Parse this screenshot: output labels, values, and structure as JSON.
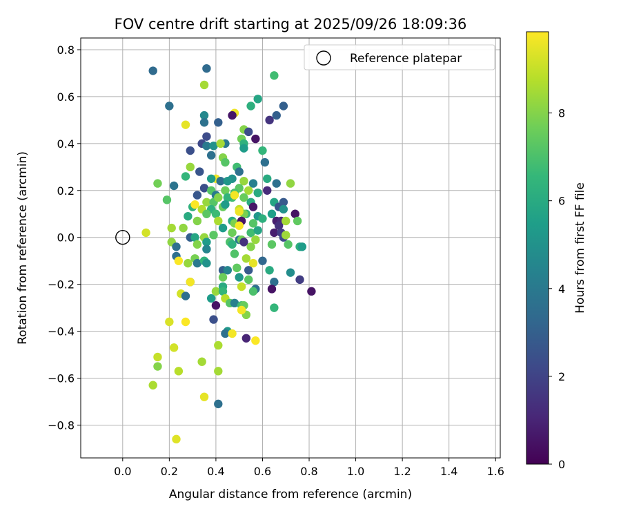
{
  "chart_data": {
    "type": "scatter",
    "title": "FOV centre drift starting at 2025/09/26 18:09:36",
    "xlabel": "Angular distance from reference (arcmin)",
    "ylabel": "Rotation from reference (arcmin)",
    "xlim": [
      -0.18,
      1.62
    ],
    "ylim": [
      -0.94,
      0.85
    ],
    "xticks": [
      0.0,
      0.2,
      0.4,
      0.6,
      0.8,
      1.0,
      1.2,
      1.4,
      1.6
    ],
    "xtick_labels": [
      "0.0",
      "0.2",
      "0.4",
      "0.6",
      "0.8",
      "1.0",
      "1.2",
      "1.4",
      "1.6"
    ],
    "yticks": [
      -0.8,
      -0.6,
      -0.4,
      -0.2,
      0.0,
      0.2,
      0.4,
      0.6,
      0.8
    ],
    "ytick_labels": [
      "−0.8",
      "−0.6",
      "−0.4",
      "−0.2",
      "0.0",
      "0.2",
      "0.4",
      "0.6",
      "0.8"
    ],
    "grid": true,
    "legend": {
      "label": "Reference platepar",
      "position": "top-right"
    },
    "reference_point": {
      "x": 0.0,
      "y": 0.0
    },
    "colorbar": {
      "label": "Hours from first FF file",
      "range": [
        0,
        9.85
      ],
      "ticks": [
        0,
        2,
        4,
        6,
        8
      ],
      "tick_labels": [
        "0",
        "2",
        "4",
        "6",
        "8"
      ],
      "colormap": [
        "#440154",
        "#482878",
        "#3e4989",
        "#31688e",
        "#26828e",
        "#1f9e89",
        "#35b779",
        "#6ece58",
        "#b5de2b",
        "#fde725"
      ]
    },
    "points": [
      [
        0.13,
        0.71,
        3.4
      ],
      [
        0.36,
        0.72,
        3.4
      ],
      [
        0.65,
        0.69,
        6.8
      ],
      [
        0.35,
        0.65,
        8.5
      ],
      [
        0.58,
        0.59,
        5.8
      ],
      [
        0.2,
        0.56,
        3.6
      ],
      [
        0.69,
        0.56,
        3.0
      ],
      [
        0.55,
        0.56,
        6.2
      ],
      [
        0.66,
        0.52,
        3.0
      ],
      [
        0.35,
        0.52,
        4.6
      ],
      [
        0.48,
        0.53,
        9.6
      ],
      [
        0.47,
        0.52,
        0.6
      ],
      [
        0.27,
        0.48,
        9.5
      ],
      [
        0.41,
        0.49,
        3.0
      ],
      [
        0.35,
        0.49,
        3.7
      ],
      [
        0.63,
        0.5,
        1.5
      ],
      [
        0.52,
        0.46,
        8.0
      ],
      [
        0.54,
        0.45,
        2.3
      ],
      [
        0.36,
        0.43,
        2.3
      ],
      [
        0.51,
        0.42,
        7.7
      ],
      [
        0.57,
        0.42,
        0.5
      ],
      [
        0.34,
        0.4,
        2.2
      ],
      [
        0.36,
        0.39,
        4.0
      ],
      [
        0.29,
        0.37,
        2.4
      ],
      [
        0.44,
        0.4,
        4.0
      ],
      [
        0.39,
        0.39,
        5.0
      ],
      [
        0.42,
        0.4,
        8.5
      ],
      [
        0.52,
        0.4,
        6.3
      ],
      [
        0.52,
        0.38,
        5.4
      ],
      [
        0.6,
        0.37,
        6.5
      ],
      [
        0.38,
        0.35,
        3.6
      ],
      [
        0.43,
        0.34,
        8.0
      ],
      [
        0.44,
        0.32,
        7.2
      ],
      [
        0.61,
        0.32,
        3.6
      ],
      [
        0.33,
        0.28,
        2.6
      ],
      [
        0.29,
        0.3,
        8.3
      ],
      [
        0.49,
        0.3,
        6.8
      ],
      [
        0.5,
        0.28,
        3.6
      ],
      [
        0.47,
        0.25,
        5.0
      ],
      [
        0.4,
        0.25,
        9.6
      ],
      [
        0.38,
        0.25,
        5.4
      ],
      [
        0.42,
        0.24,
        3.6
      ],
      [
        0.45,
        0.24,
        5.2
      ],
      [
        0.52,
        0.24,
        8.3
      ],
      [
        0.56,
        0.23,
        4.3
      ],
      [
        0.62,
        0.25,
        6.0
      ],
      [
        0.66,
        0.23,
        3.6
      ],
      [
        0.72,
        0.23,
        8.2
      ],
      [
        0.27,
        0.26,
        6.5
      ],
      [
        0.15,
        0.23,
        7.7
      ],
      [
        0.22,
        0.22,
        3.8
      ],
      [
        0.35,
        0.21,
        2.4
      ],
      [
        0.38,
        0.2,
        7.2
      ],
      [
        0.44,
        0.2,
        7.6
      ],
      [
        0.5,
        0.21,
        7.3
      ],
      [
        0.54,
        0.2,
        8.5
      ],
      [
        0.62,
        0.2,
        1.2
      ],
      [
        0.58,
        0.19,
        6.0
      ],
      [
        0.32,
        0.18,
        2.7
      ],
      [
        0.4,
        0.18,
        4.0
      ],
      [
        0.48,
        0.19,
        7.0
      ],
      [
        0.47,
        0.17,
        6.8
      ],
      [
        0.36,
        0.15,
        8.3
      ],
      [
        0.39,
        0.15,
        7.2
      ],
      [
        0.41,
        0.17,
        8.0
      ],
      [
        0.45,
        0.17,
        6.4
      ],
      [
        0.48,
        0.18,
        9.7
      ],
      [
        0.52,
        0.17,
        7.5
      ],
      [
        0.55,
        0.15,
        6.0
      ],
      [
        0.56,
        0.13,
        0.6
      ],
      [
        0.65,
        0.15,
        5.8
      ],
      [
        0.67,
        0.13,
        2.6
      ],
      [
        0.69,
        0.15,
        2.8
      ],
      [
        0.3,
        0.13,
        6.3
      ],
      [
        0.31,
        0.14,
        9.8
      ],
      [
        0.34,
        0.12,
        8.7
      ],
      [
        0.38,
        0.12,
        6.3
      ],
      [
        0.43,
        0.13,
        7.5
      ],
      [
        0.44,
        0.14,
        5.4
      ],
      [
        0.5,
        0.12,
        9.0
      ],
      [
        0.53,
        0.1,
        6.5
      ],
      [
        0.52,
        0.1,
        7.8
      ],
      [
        0.58,
        0.09,
        5.2
      ],
      [
        0.6,
        0.08,
        6.2
      ],
      [
        0.64,
        0.1,
        5.5
      ],
      [
        0.69,
        0.12,
        5.0
      ],
      [
        0.19,
        0.16,
        7.2
      ],
      [
        0.36,
        0.1,
        7.3
      ],
      [
        0.4,
        0.1,
        6.7
      ],
      [
        0.28,
        0.09,
        6.0
      ],
      [
        0.32,
        0.07,
        8.0
      ],
      [
        0.41,
        0.07,
        8.6
      ],
      [
        0.47,
        0.07,
        6.1
      ],
      [
        0.48,
        0.06,
        7.9
      ],
      [
        0.5,
        0.11,
        9.6
      ],
      [
        0.51,
        0.07,
        0.6
      ],
      [
        0.56,
        0.06,
        7.2
      ],
      [
        0.66,
        0.07,
        0.8
      ],
      [
        0.68,
        0.07,
        1.1
      ],
      [
        0.67,
        0.05,
        1.4
      ],
      [
        0.7,
        0.07,
        8.5
      ],
      [
        0.74,
        0.1,
        0.5
      ],
      [
        0.75,
        0.07,
        7.4
      ],
      [
        0.43,
        0.04,
        5.4
      ],
      [
        0.5,
        0.05,
        9.8
      ],
      [
        0.55,
        0.02,
        6.8
      ],
      [
        0.58,
        0.03,
        5.8
      ],
      [
        0.65,
        0.02,
        0.8
      ],
      [
        0.68,
        0.02,
        1.8
      ],
      [
        0.69,
        0.0,
        2.2
      ],
      [
        0.7,
        0.01,
        8.4
      ],
      [
        0.1,
        0.02,
        9.2
      ],
      [
        0.21,
        0.04,
        8.5
      ],
      [
        0.26,
        0.04,
        8.2
      ],
      [
        0.29,
        0.0,
        3.0
      ],
      [
        0.31,
        0.0,
        5.8
      ],
      [
        0.35,
        0.0,
        8.3
      ],
      [
        0.39,
        0.01,
        7.3
      ],
      [
        0.47,
        0.02,
        7.6
      ],
      [
        0.5,
        -0.01,
        4.0
      ],
      [
        0.51,
        -0.01,
        7.7
      ],
      [
        0.52,
        -0.02,
        1.4
      ],
      [
        0.21,
        -0.02,
        8.2
      ],
      [
        0.23,
        -0.04,
        3.6
      ],
      [
        0.32,
        -0.03,
        8.0
      ],
      [
        0.36,
        -0.02,
        5.4
      ],
      [
        0.36,
        -0.05,
        4.5
      ],
      [
        0.46,
        -0.02,
        7.0
      ],
      [
        0.47,
        -0.03,
        6.3
      ],
      [
        0.55,
        -0.04,
        8.0
      ],
      [
        0.57,
        -0.01,
        8.3
      ],
      [
        0.64,
        -0.03,
        7.3
      ],
      [
        0.71,
        -0.03,
        7.2
      ],
      [
        0.76,
        -0.04,
        6.2
      ],
      [
        0.77,
        -0.04,
        5.4
      ],
      [
        0.23,
        -0.08,
        3.6
      ],
      [
        0.24,
        -0.1,
        9.8
      ],
      [
        0.28,
        -0.11,
        8.3
      ],
      [
        0.31,
        -0.09,
        7.8
      ],
      [
        0.32,
        -0.11,
        4.0
      ],
      [
        0.35,
        -0.1,
        6.4
      ],
      [
        0.36,
        -0.11,
        5.0
      ],
      [
        0.48,
        -0.07,
        7.1
      ],
      [
        0.53,
        -0.09,
        8.5
      ],
      [
        0.56,
        -0.11,
        9.5
      ],
      [
        0.6,
        -0.1,
        3.3
      ],
      [
        0.43,
        -0.14,
        3.0
      ],
      [
        0.45,
        -0.14,
        4.5
      ],
      [
        0.49,
        -0.13,
        7.4
      ],
      [
        0.54,
        -0.14,
        2.8
      ],
      [
        0.63,
        -0.14,
        6.0
      ],
      [
        0.72,
        -0.15,
        4.8
      ],
      [
        0.29,
        -0.19,
        3.6
      ],
      [
        0.43,
        -0.17,
        7.6
      ],
      [
        0.5,
        -0.17,
        5.2
      ],
      [
        0.54,
        -0.18,
        7.3
      ],
      [
        0.65,
        -0.19,
        3.6
      ],
      [
        0.76,
        -0.18,
        1.8
      ],
      [
        0.81,
        -0.23,
        0.5
      ],
      [
        0.29,
        -0.19,
        9.7
      ],
      [
        0.43,
        -0.21,
        6.0
      ],
      [
        0.51,
        -0.21,
        9.0
      ],
      [
        0.57,
        -0.22,
        3.6
      ],
      [
        0.64,
        -0.22,
        0.5
      ],
      [
        0.25,
        -0.24,
        9.2
      ],
      [
        0.27,
        -0.25,
        3.6
      ],
      [
        0.38,
        -0.26,
        5.4
      ],
      [
        0.4,
        -0.23,
        8.3
      ],
      [
        0.43,
        -0.23,
        6.5
      ],
      [
        0.44,
        -0.26,
        8.8
      ],
      [
        0.46,
        -0.28,
        7.2
      ],
      [
        0.48,
        -0.28,
        4.3
      ],
      [
        0.51,
        -0.29,
        6.8
      ],
      [
        0.52,
        -0.29,
        7.5
      ],
      [
        0.53,
        -0.33,
        8.0
      ],
      [
        0.56,
        -0.23,
        7.0
      ],
      [
        0.4,
        -0.29,
        0.5
      ],
      [
        0.51,
        -0.31,
        9.7
      ],
      [
        0.65,
        -0.3,
        6.5
      ],
      [
        0.2,
        -0.36,
        9.3
      ],
      [
        0.27,
        -0.36,
        9.8
      ],
      [
        0.39,
        -0.35,
        2.4
      ],
      [
        0.45,
        -0.4,
        5.2
      ],
      [
        0.44,
        -0.41,
        3.6
      ],
      [
        0.47,
        -0.41,
        9.7
      ],
      [
        0.53,
        -0.43,
        1.0
      ],
      [
        0.57,
        -0.44,
        9.8
      ],
      [
        0.22,
        -0.47,
        9.2
      ],
      [
        0.41,
        -0.46,
        8.6
      ],
      [
        0.15,
        -0.51,
        9.0
      ],
      [
        0.15,
        -0.55,
        8.0
      ],
      [
        0.34,
        -0.53,
        8.5
      ],
      [
        0.24,
        -0.57,
        8.8
      ],
      [
        0.41,
        -0.57,
        8.5
      ],
      [
        0.13,
        -0.63,
        8.6
      ],
      [
        0.35,
        -0.68,
        9.5
      ],
      [
        0.41,
        -0.71,
        3.6
      ],
      [
        0.23,
        -0.86,
        9.4
      ]
    ]
  }
}
